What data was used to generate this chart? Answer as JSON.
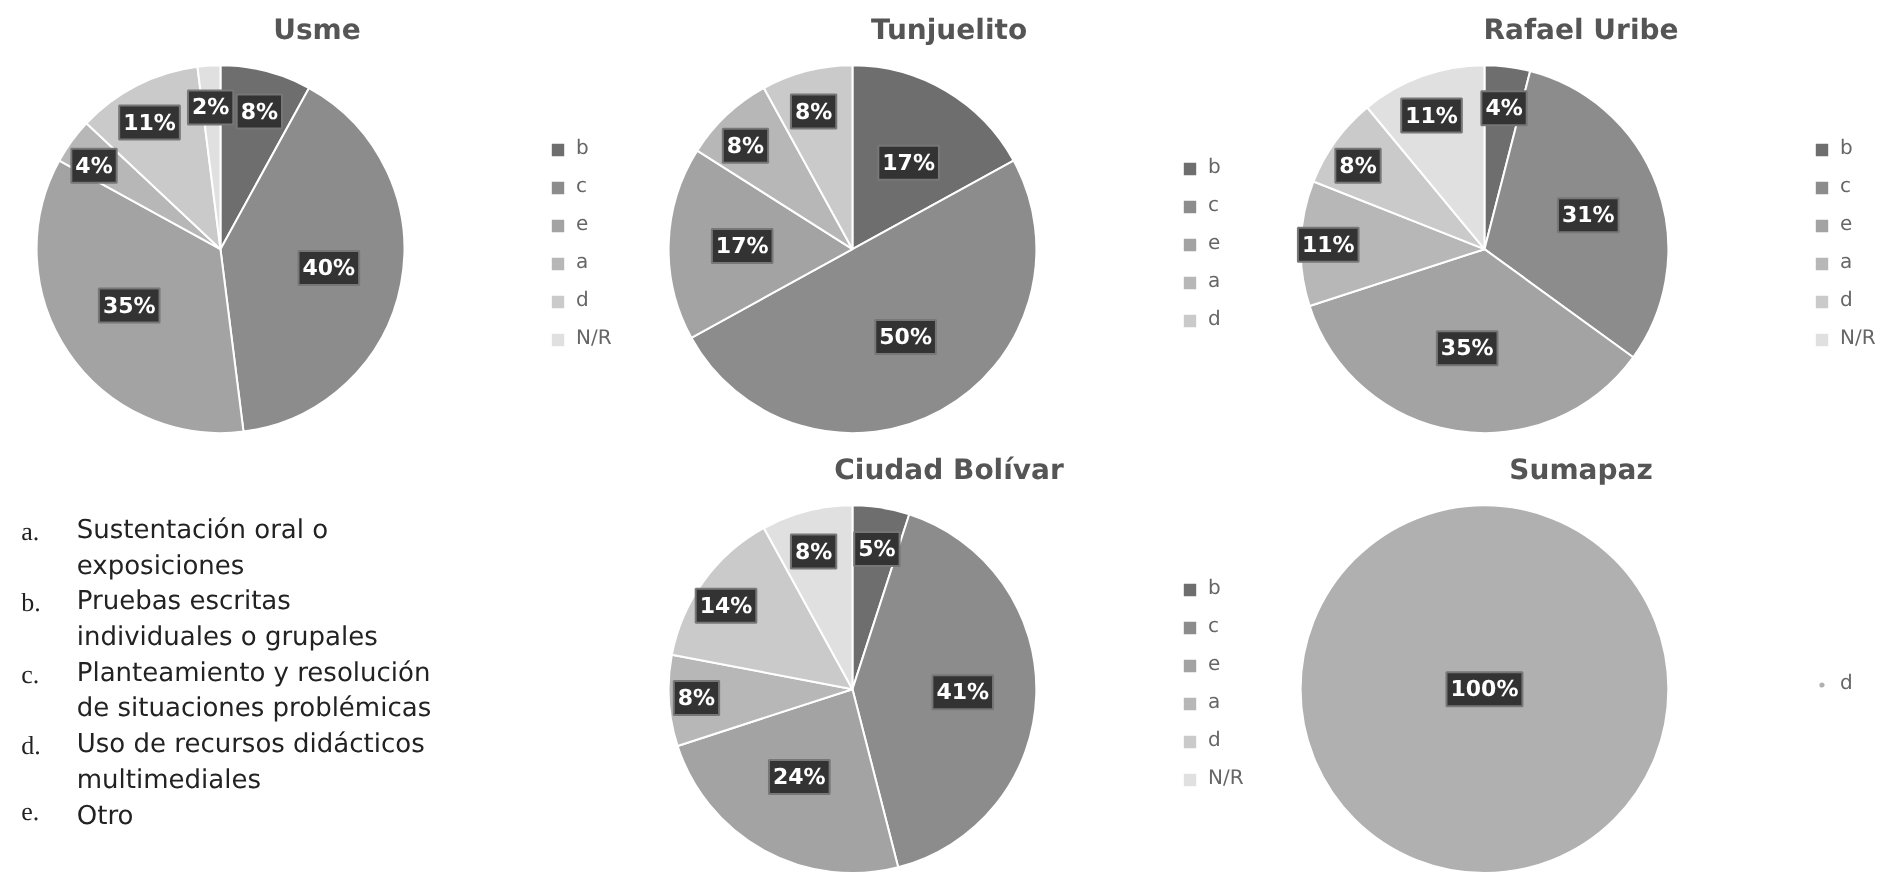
{
  "chart_data": [
    {
      "type": "pie",
      "title": "Usme",
      "categories": [
        "b",
        "c",
        "e",
        "a",
        "d",
        "N/R"
      ],
      "values": [
        8,
        40,
        35,
        4,
        11,
        2
      ],
      "value_labels": [
        "8%",
        "40%",
        "35%",
        "4%",
        "11%",
        "2%"
      ],
      "colors": [
        "#6e6e6e",
        "#8c8c8c",
        "#a3a3a3",
        "#b7b7b7",
        "#cacaca",
        "#e0e0e0"
      ],
      "legend": "right"
    },
    {
      "type": "pie",
      "title": "Tunjuelito",
      "categories": [
        "b",
        "c",
        "e",
        "a",
        "d"
      ],
      "values": [
        17,
        50,
        17,
        8,
        8
      ],
      "value_labels": [
        "17%",
        "50%",
        "17%",
        "8%",
        "8%"
      ],
      "colors": [
        "#6e6e6e",
        "#8c8c8c",
        "#a3a3a3",
        "#b7b7b7",
        "#cacaca"
      ],
      "legend": "right"
    },
    {
      "type": "pie",
      "title": "Rafael Uribe",
      "categories": [
        "b",
        "c",
        "e",
        "a",
        "d",
        "N/R"
      ],
      "values": [
        4,
        31,
        35,
        11,
        8,
        11
      ],
      "value_labels": [
        "4%",
        "31%",
        "35%",
        "11%",
        "8%",
        "11%"
      ],
      "colors": [
        "#6e6e6e",
        "#8c8c8c",
        "#a3a3a3",
        "#b7b7b7",
        "#cacaca",
        "#e0e0e0"
      ],
      "legend": "right"
    },
    {
      "type": "other",
      "annotations": [
        "a. Sustentación oral o exposiciones",
        "b. Pruebas escritas individuales o grupales",
        "c. Planteamiento y resolución de situaciones problémicas",
        "d. Uso de recursos didácticos multimediales",
        "e. Otro"
      ]
    },
    {
      "type": "pie",
      "title": "Ciudad Bolívar",
      "categories": [
        "b",
        "c",
        "e",
        "a",
        "d",
        "N/R"
      ],
      "values": [
        5,
        41,
        24,
        8,
        14,
        8
      ],
      "value_labels": [
        "5%",
        "41%",
        "24%",
        "8%",
        "14%",
        "8%"
      ],
      "colors": [
        "#6e6e6e",
        "#8c8c8c",
        "#a3a3a3",
        "#b7b7b7",
        "#cacaca",
        "#e0e0e0"
      ],
      "legend": "right"
    },
    {
      "type": "pie",
      "title": "Sumapaz",
      "categories": [
        "d"
      ],
      "values": [
        100
      ],
      "value_labels": [
        "100%"
      ],
      "colors": [
        "#b0b0b0"
      ],
      "legend": "right"
    }
  ]
}
